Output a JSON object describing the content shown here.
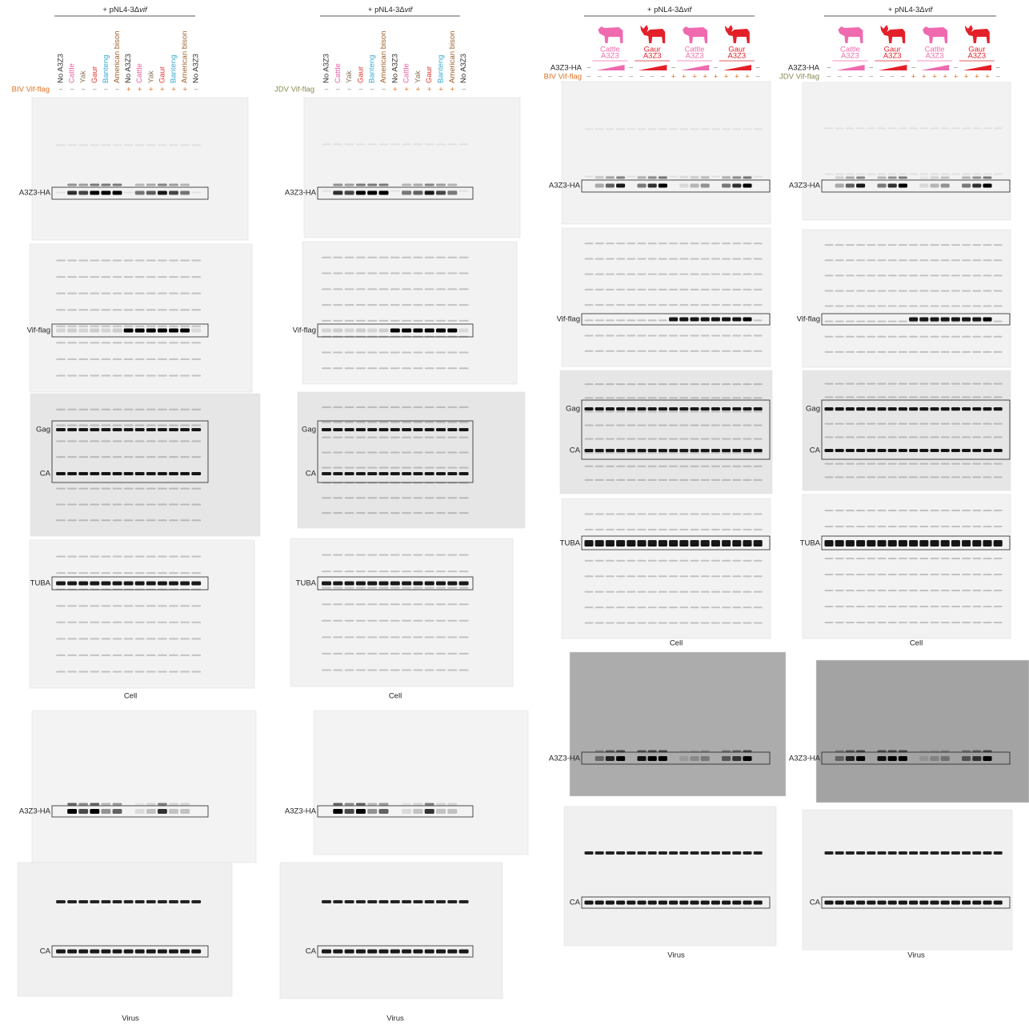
{
  "panels": [
    {
      "header": {
        "prefix": "+ pNL4-3Δ",
        "italic": "vif"
      },
      "lanes": [
        "No A3Z3",
        "Cattle",
        "Yak",
        "Gaur",
        "Banteng",
        "American bison",
        "No A3Z3",
        "Cattle",
        "Yak",
        "Gaur",
        "Banteng",
        "American bison",
        "No A3Z3"
      ],
      "vif_row": {
        "label": "BIV Vif-flag",
        "signs": [
          "−",
          "−",
          "−",
          "−",
          "−",
          "−",
          "+",
          "+",
          "+",
          "+",
          "+",
          "+",
          "−"
        ]
      },
      "cell_blots": [
        {
          "labels": [
            "A3Z3-HA"
          ]
        },
        {
          "labels": [
            "Vif-flag"
          ]
        },
        {
          "labels": [
            "Gag",
            "CA"
          ]
        },
        {
          "labels": [
            "TUBA"
          ]
        }
      ],
      "cell_caption": "Cell",
      "virus_blots": [
        {
          "labels": [
            "A3Z3-HA"
          ]
        },
        {
          "labels": [
            "CA"
          ]
        }
      ],
      "virus_caption": "Virus"
    },
    {
      "header": {
        "prefix": "+ pNL4-3Δ",
        "italic": "vif"
      },
      "lanes": [
        "No A3Z3",
        "Cattle",
        "Yak",
        "Gaur",
        "Banteng",
        "American bison",
        "No A3Z3",
        "Cattle",
        "Yak",
        "Gaur",
        "Banteng",
        "American bison",
        "No A3Z3"
      ],
      "vif_row": {
        "label": "JDV Vif-flag",
        "signs": [
          "−",
          "−",
          "−",
          "−",
          "−",
          "−",
          "+",
          "+",
          "+",
          "+",
          "+",
          "+",
          "−"
        ]
      },
      "cell_blots": [
        {
          "labels": [
            "A3Z3-HA"
          ]
        },
        {
          "labels": [
            "Vif-flag"
          ]
        },
        {
          "labels": [
            "Gag",
            "CA"
          ]
        },
        {
          "labels": [
            "TUBA"
          ]
        }
      ],
      "cell_caption": "Cell",
      "virus_blots": [
        {
          "labels": [
            "A3Z3-HA"
          ]
        },
        {
          "labels": [
            "CA"
          ]
        }
      ],
      "virus_caption": "Virus"
    },
    {
      "header": {
        "prefix": "+ pNL4-3Δ",
        "italic": "vif"
      },
      "constructs": [
        {
          "label": [
            "Cattle",
            "A3Z3"
          ]
        },
        {
          "label": [
            "Gaur",
            "A3Z3"
          ]
        },
        {
          "label": [
            "Cattle",
            "A3Z3"
          ]
        },
        {
          "label": [
            "Gaur",
            "A3Z3"
          ]
        }
      ],
      "a3_row": {
        "label": "A3Z3-HA",
        "signs": [
          "−",
          "−",
          "−",
          "−",
          "−"
        ]
      },
      "vif_row": {
        "label": "BIV Vif-flag",
        "signs": [
          "−",
          "−",
          "−",
          "−",
          "−",
          "−",
          "−",
          "−",
          "+",
          "+",
          "+",
          "+",
          "+",
          "+",
          "+",
          "+",
          "−"
        ]
      },
      "cell_blots": [
        {
          "labels": [
            "A3Z3-HA"
          ]
        },
        {
          "labels": [
            "Vif-flag"
          ]
        },
        {
          "labels": [
            "Gag",
            "CA"
          ]
        },
        {
          "labels": [
            "TUBA"
          ]
        }
      ],
      "cell_caption": "Cell",
      "virus_blots": [
        {
          "labels": [
            "A3Z3-HA"
          ]
        },
        {
          "labels": [
            "CA"
          ]
        }
      ],
      "virus_caption": "Virus"
    },
    {
      "header": {
        "prefix": "+ pNL4-3Δ",
        "italic": "vif"
      },
      "constructs": [
        {
          "label": [
            "Cattle",
            "A3Z3"
          ]
        },
        {
          "label": [
            "Gaur",
            "A3Z3"
          ]
        },
        {
          "label": [
            "Cattle",
            "A3Z3"
          ]
        },
        {
          "label": [
            "Gaur",
            "A3Z3"
          ]
        }
      ],
      "a3_row": {
        "label": "A3Z3-HA",
        "signs": [
          "−",
          "−",
          "−",
          "−",
          "−"
        ]
      },
      "vif_row": {
        "label": "JDV Vif-flag",
        "signs": [
          "−",
          "−",
          "−",
          "−",
          "−",
          "−",
          "−",
          "−",
          "+",
          "+",
          "+",
          "+",
          "+",
          "+",
          "+",
          "+",
          "−"
        ]
      },
      "cell_blots": [
        {
          "labels": [
            "A3Z3-HA"
          ]
        },
        {
          "labels": [
            "Vif-flag"
          ]
        },
        {
          "labels": [
            "Gag",
            "CA"
          ]
        },
        {
          "labels": [
            "TUBA"
          ]
        }
      ],
      "cell_caption": "Cell",
      "virus_blots": [
        {
          "labels": [
            "A3Z3-HA"
          ]
        },
        {
          "labels": [
            "CA"
          ]
        }
      ],
      "virus_caption": "Virus"
    }
  ]
}
